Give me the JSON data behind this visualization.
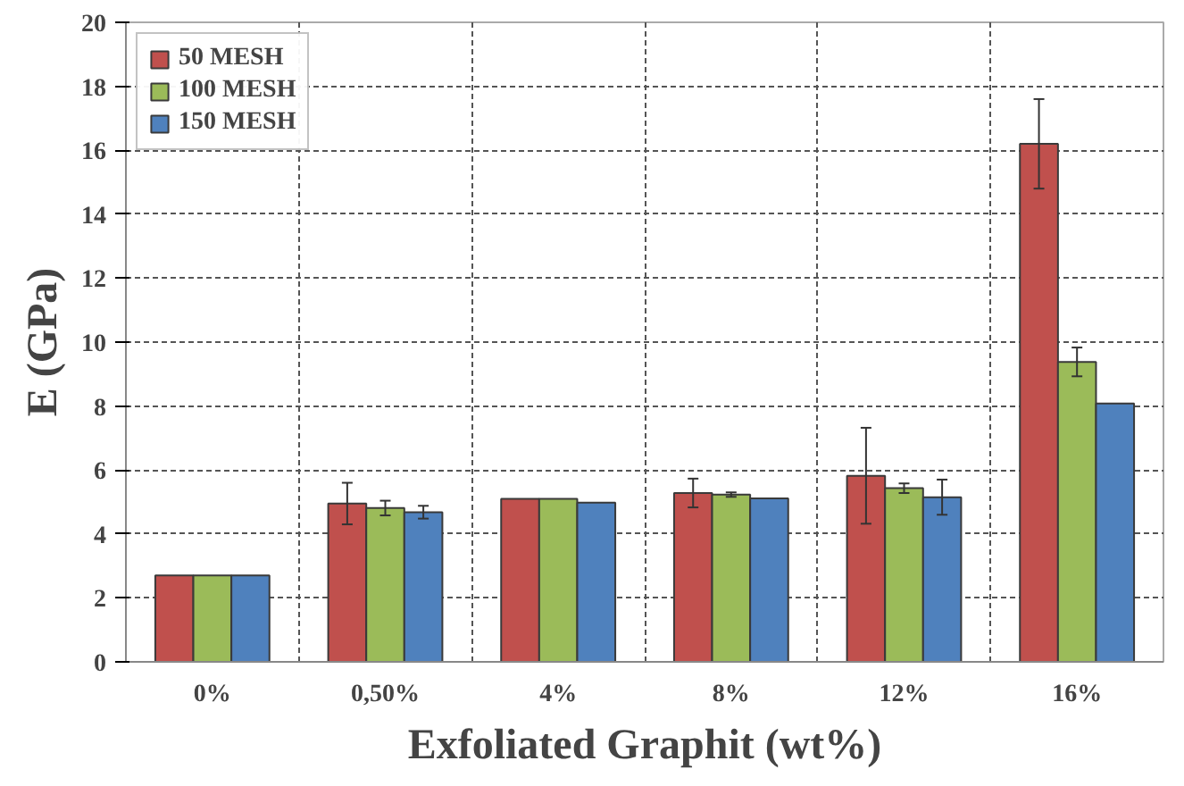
{
  "chart_data": {
    "type": "bar",
    "xlabel": "Exfoliated Graphit (wt%)",
    "ylabel": "E (GPa)",
    "categories": [
      "0%",
      "0,50%",
      "4%",
      "8%",
      "12%",
      "16%"
    ],
    "series": [
      {
        "name": "50 MESH",
        "color": "#c0504d",
        "values": [
          2.7,
          4.95,
          5.1,
          5.28,
          5.82,
          16.2
        ],
        "errors": [
          null,
          0.65,
          null,
          0.45,
          1.5,
          1.4
        ]
      },
      {
        "name": "100 MESH",
        "color": "#9bbb59",
        "values": [
          2.7,
          4.81,
          5.1,
          5.23,
          5.43,
          9.38
        ],
        "errors": [
          null,
          0.23,
          null,
          0.07,
          0.15,
          0.45
        ]
      },
      {
        "name": "150 MESH",
        "color": "#4f81bd",
        "values": [
          2.7,
          4.68,
          4.98,
          5.11,
          5.15,
          8.08
        ],
        "errors": [
          null,
          0.2,
          null,
          null,
          0.55,
          null
        ]
      }
    ],
    "ylim": [
      0,
      20
    ],
    "yticks": [
      0,
      2,
      4,
      6,
      8,
      10,
      12,
      14,
      16,
      18,
      20
    ],
    "grid": true,
    "legend": "top left"
  }
}
